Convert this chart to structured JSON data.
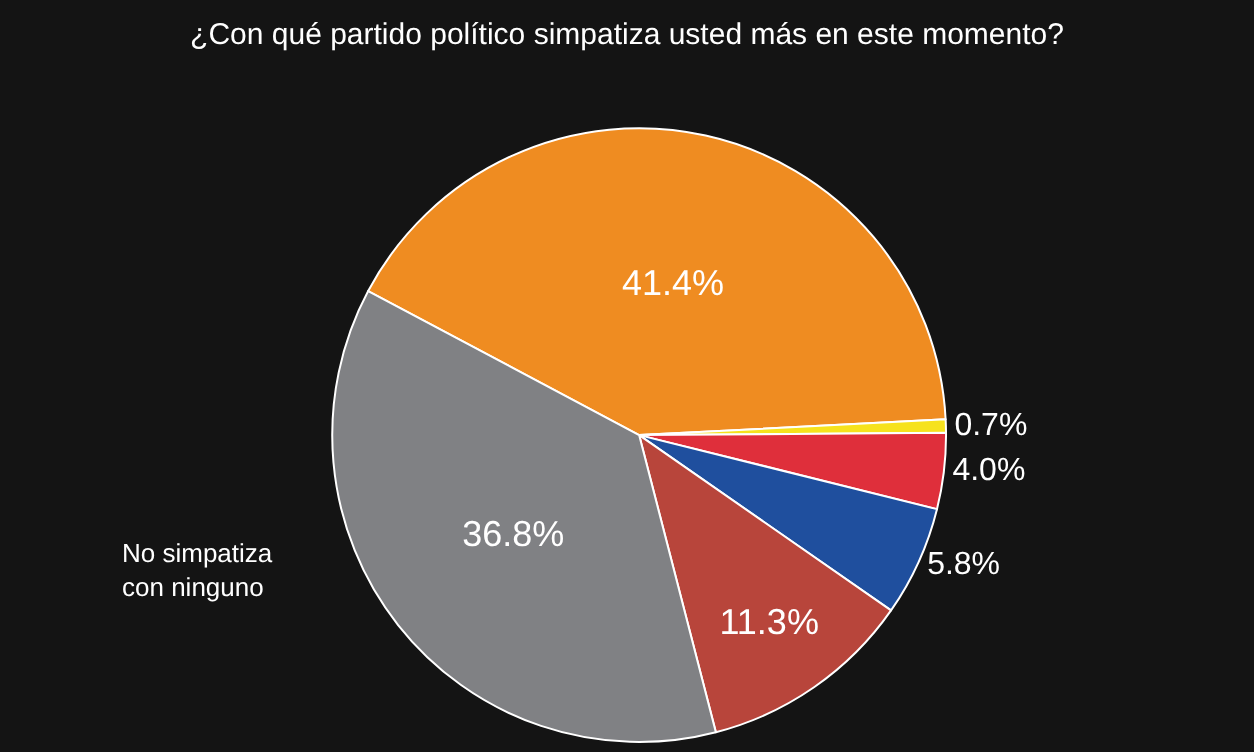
{
  "chart_data": {
    "type": "pie",
    "title": "¿Con qué partido político simpatiza usted más en este momento?",
    "categories": [
      null,
      null,
      null,
      null,
      null,
      "No simpatiza con ninguno"
    ],
    "values": [
      41.4,
      0.7,
      4.0,
      5.8,
      11.3,
      36.8
    ],
    "colors": [
      "#ef8c21",
      "#f6e21d",
      "#df2f3b",
      "#1f4f9e",
      "#b8453b",
      "#808184"
    ],
    "value_labels": [
      "41.4%",
      "0.7%",
      "4.0%",
      "5.8%",
      "11.3%",
      "36.8%"
    ],
    "legend": false
  }
}
